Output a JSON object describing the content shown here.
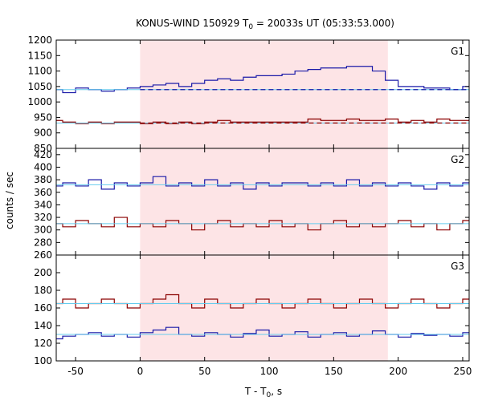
{
  "chart_data": {
    "type": "line",
    "title": "KONUS-WIND 150929 T",
    "title_sub": "0",
    "title_rest": " = 20033s UT (05:33:53.000)",
    "xlabel": "T - T",
    "xlabel_sub": "0",
    "xlabel_rest": ", s",
    "ylabel": "counts / sec",
    "xlim": [
      -65,
      255
    ],
    "x_ticks": [
      -50,
      0,
      50,
      100,
      150,
      200,
      250
    ],
    "shaded_interval": [
      0,
      192
    ],
    "colors": {
      "blue": "#1a1aa8",
      "red": "#8b0000",
      "fit": "#66ccee",
      "shade": "#fde4e6"
    },
    "panels": [
      {
        "label": "G1",
        "ylim": [
          850,
          1200
        ],
        "y_ticks": [
          850,
          900,
          950,
          1000,
          1050,
          1100,
          1150,
          1200
        ],
        "series": [
          {
            "color": "blue",
            "background_level": 1040,
            "points": [
              [
                -65,
                1040
              ],
              [
                -55,
                1030
              ],
              [
                -45,
                1045
              ],
              [
                -35,
                1040
              ],
              [
                -25,
                1035
              ],
              [
                -15,
                1040
              ],
              [
                -5,
                1045
              ],
              [
                5,
                1050
              ],
              [
                15,
                1055
              ],
              [
                25,
                1060
              ],
              [
                35,
                1050
              ],
              [
                45,
                1060
              ],
              [
                55,
                1070
              ],
              [
                65,
                1075
              ],
              [
                75,
                1070
              ],
              [
                85,
                1080
              ],
              [
                95,
                1085
              ],
              [
                105,
                1085
              ],
              [
                115,
                1090
              ],
              [
                125,
                1100
              ],
              [
                135,
                1105
              ],
              [
                145,
                1110
              ],
              [
                155,
                1110
              ],
              [
                165,
                1115
              ],
              [
                175,
                1115
              ],
              [
                185,
                1100
              ],
              [
                195,
                1070
              ],
              [
                205,
                1050
              ],
              [
                215,
                1050
              ],
              [
                225,
                1045
              ],
              [
                235,
                1045
              ],
              [
                245,
                1040
              ],
              [
                255,
                1050
              ]
            ]
          },
          {
            "color": "red",
            "background_level": 932,
            "points": [
              [
                -65,
                940
              ],
              [
                -55,
                935
              ],
              [
                -45,
                930
              ],
              [
                -35,
                935
              ],
              [
                -25,
                930
              ],
              [
                -15,
                935
              ],
              [
                -5,
                935
              ],
              [
                5,
                930
              ],
              [
                15,
                935
              ],
              [
                25,
                930
              ],
              [
                35,
                935
              ],
              [
                45,
                930
              ],
              [
                55,
                935
              ],
              [
                65,
                940
              ],
              [
                75,
                935
              ],
              [
                85,
                935
              ],
              [
                95,
                935
              ],
              [
                105,
                935
              ],
              [
                115,
                935
              ],
              [
                125,
                935
              ],
              [
                135,
                945
              ],
              [
                145,
                940
              ],
              [
                155,
                940
              ],
              [
                165,
                945
              ],
              [
                175,
                940
              ],
              [
                185,
                940
              ],
              [
                195,
                945
              ],
              [
                205,
                935
              ],
              [
                215,
                940
              ],
              [
                225,
                935
              ],
              [
                235,
                945
              ],
              [
                245,
                940
              ],
              [
                255,
                940
              ]
            ]
          }
        ]
      },
      {
        "label": "G2",
        "ylim": [
          260,
          430
        ],
        "y_ticks": [
          260,
          280,
          300,
          320,
          340,
          360,
          380,
          400,
          420
        ],
        "series": [
          {
            "color": "blue",
            "background_level": 372,
            "points": [
              [
                -65,
                370
              ],
              [
                -55,
                375
              ],
              [
                -45,
                370
              ],
              [
                -35,
                380
              ],
              [
                -25,
                365
              ],
              [
                -15,
                375
              ],
              [
                -5,
                370
              ],
              [
                5,
                375
              ],
              [
                15,
                385
              ],
              [
                25,
                370
              ],
              [
                35,
                375
              ],
              [
                45,
                370
              ],
              [
                55,
                380
              ],
              [
                65,
                370
              ],
              [
                75,
                375
              ],
              [
                85,
                365
              ],
              [
                95,
                375
              ],
              [
                105,
                370
              ],
              [
                115,
                375
              ],
              [
                125,
                375
              ],
              [
                135,
                370
              ],
              [
                145,
                375
              ],
              [
                155,
                370
              ],
              [
                165,
                380
              ],
              [
                175,
                370
              ],
              [
                185,
                375
              ],
              [
                195,
                370
              ],
              [
                205,
                375
              ],
              [
                215,
                370
              ],
              [
                225,
                365
              ],
              [
                235,
                375
              ],
              [
                245,
                370
              ],
              [
                255,
                375
              ]
            ]
          },
          {
            "color": "red",
            "background_level": 310,
            "points": [
              [
                -65,
                310
              ],
              [
                -55,
                305
              ],
              [
                -45,
                315
              ],
              [
                -35,
                310
              ],
              [
                -25,
                305
              ],
              [
                -15,
                320
              ],
              [
                -5,
                305
              ],
              [
                5,
                310
              ],
              [
                15,
                305
              ],
              [
                25,
                315
              ],
              [
                35,
                310
              ],
              [
                45,
                300
              ],
              [
                55,
                310
              ],
              [
                65,
                315
              ],
              [
                75,
                305
              ],
              [
                85,
                310
              ],
              [
                95,
                305
              ],
              [
                105,
                315
              ],
              [
                115,
                305
              ],
              [
                125,
                310
              ],
              [
                135,
                300
              ],
              [
                145,
                310
              ],
              [
                155,
                315
              ],
              [
                165,
                305
              ],
              [
                175,
                310
              ],
              [
                185,
                305
              ],
              [
                195,
                310
              ],
              [
                205,
                315
              ],
              [
                215,
                305
              ],
              [
                225,
                310
              ],
              [
                235,
                300
              ],
              [
                245,
                310
              ],
              [
                255,
                315
              ]
            ]
          }
        ]
      },
      {
        "label": "G3",
        "ylim": [
          100,
          220
        ],
        "y_ticks": [
          100,
          120,
          140,
          160,
          180,
          200
        ],
        "series": [
          {
            "color": "red",
            "background_level": 165,
            "points": [
              [
                -65,
                165
              ],
              [
                -55,
                170
              ],
              [
                -45,
                160
              ],
              [
                -35,
                165
              ],
              [
                -25,
                170
              ],
              [
                -15,
                165
              ],
              [
                -5,
                160
              ],
              [
                5,
                165
              ],
              [
                15,
                170
              ],
              [
                25,
                175
              ],
              [
                35,
                165
              ],
              [
                45,
                160
              ],
              [
                55,
                170
              ],
              [
                65,
                165
              ],
              [
                75,
                160
              ],
              [
                85,
                165
              ],
              [
                95,
                170
              ],
              [
                105,
                165
              ],
              [
                115,
                160
              ],
              [
                125,
                165
              ],
              [
                135,
                170
              ],
              [
                145,
                165
              ],
              [
                155,
                160
              ],
              [
                165,
                165
              ],
              [
                175,
                170
              ],
              [
                185,
                165
              ],
              [
                195,
                160
              ],
              [
                205,
                165
              ],
              [
                215,
                170
              ],
              [
                225,
                165
              ],
              [
                235,
                160
              ],
              [
                245,
                165
              ],
              [
                255,
                170
              ]
            ]
          },
          {
            "color": "blue",
            "background_level": 130,
            "points": [
              [
                -65,
                125
              ],
              [
                -55,
                128
              ],
              [
                -45,
                130
              ],
              [
                -35,
                132
              ],
              [
                -25,
                128
              ],
              [
                -15,
                130
              ],
              [
                -5,
                127
              ],
              [
                5,
                132
              ],
              [
                15,
                135
              ],
              [
                25,
                138
              ],
              [
                35,
                130
              ],
              [
                45,
                128
              ],
              [
                55,
                132
              ],
              [
                65,
                130
              ],
              [
                75,
                127
              ],
              [
                85,
                131
              ],
              [
                95,
                135
              ],
              [
                105,
                128
              ],
              [
                115,
                130
              ],
              [
                125,
                133
              ],
              [
                135,
                127
              ],
              [
                145,
                130
              ],
              [
                155,
                132
              ],
              [
                165,
                128
              ],
              [
                175,
                130
              ],
              [
                185,
                134
              ],
              [
                195,
                130
              ],
              [
                205,
                127
              ],
              [
                215,
                131
              ],
              [
                225,
                129
              ],
              [
                235,
                130
              ],
              [
                245,
                128
              ],
              [
                255,
                132
              ]
            ]
          }
        ]
      }
    ]
  }
}
